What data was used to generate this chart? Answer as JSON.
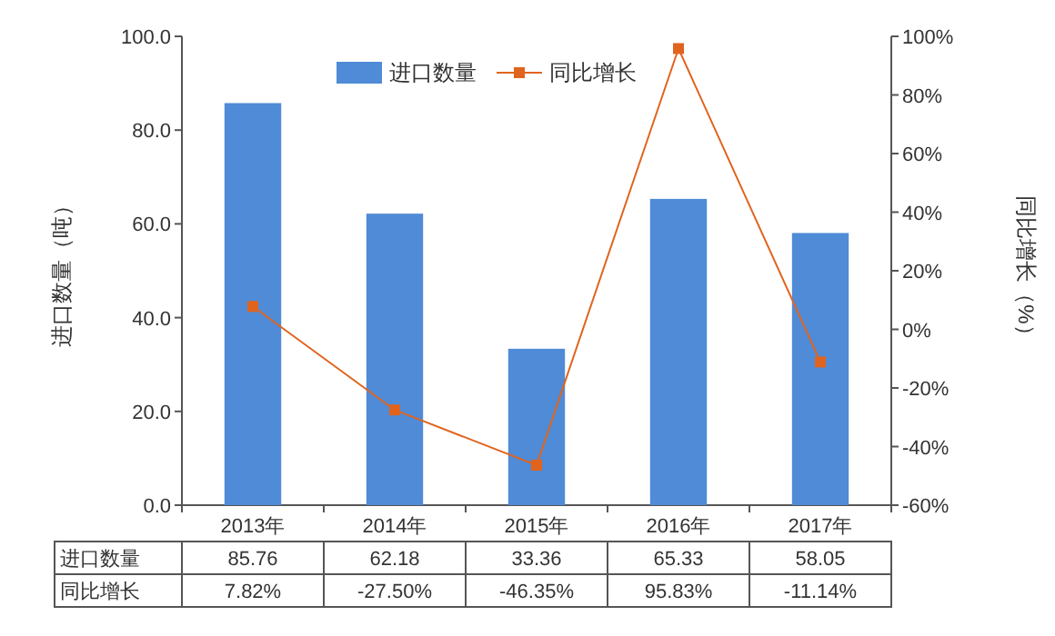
{
  "chart_data": {
    "type": "bar",
    "categories": [
      "2013年",
      "2014年",
      "2015年",
      "2016年",
      "2017年"
    ],
    "ylabel": "进口数量（吨）",
    "y2label": "同比增长（%）",
    "ylim": [
      0,
      100
    ],
    "yticks": [
      {
        "value": 0,
        "label": "0.0"
      },
      {
        "value": 20,
        "label": "20.0"
      },
      {
        "value": 40,
        "label": "40.0"
      },
      {
        "value": 60,
        "label": "60.0"
      },
      {
        "value": 80,
        "label": "80.0"
      },
      {
        "value": 100,
        "label": "100.0"
      }
    ],
    "y2lim": [
      -60,
      100
    ],
    "y2ticks": [
      {
        "value": -60,
        "label": "-60%"
      },
      {
        "value": -40,
        "label": "-40%"
      },
      {
        "value": -20,
        "label": "-20%"
      },
      {
        "value": 0,
        "label": "0%"
      },
      {
        "value": 20,
        "label": "20%"
      },
      {
        "value": 40,
        "label": "40%"
      },
      {
        "value": 60,
        "label": "60%"
      },
      {
        "value": 80,
        "label": "80%"
      },
      {
        "value": 100,
        "label": "100%"
      }
    ],
    "legend": "top",
    "marker": "square",
    "series": [
      {
        "name": "进口数量",
        "color": "#4f8bd6",
        "values": [
          85.76,
          62.18,
          33.36,
          65.33,
          58.05
        ],
        "value_labels": [
          "85.76",
          "62.18",
          "33.36",
          "65.33",
          "58.05"
        ]
      },
      {
        "name": "同比增长",
        "type": "line",
        "axis": "y2",
        "color": "#e0641e",
        "values": [
          7.82,
          -27.5,
          -46.35,
          95.83,
          -11.14
        ],
        "value_labels": [
          "7.82%",
          "-27.50%",
          "-46.35%",
          "95.83%",
          "-11.14%"
        ]
      }
    ]
  }
}
